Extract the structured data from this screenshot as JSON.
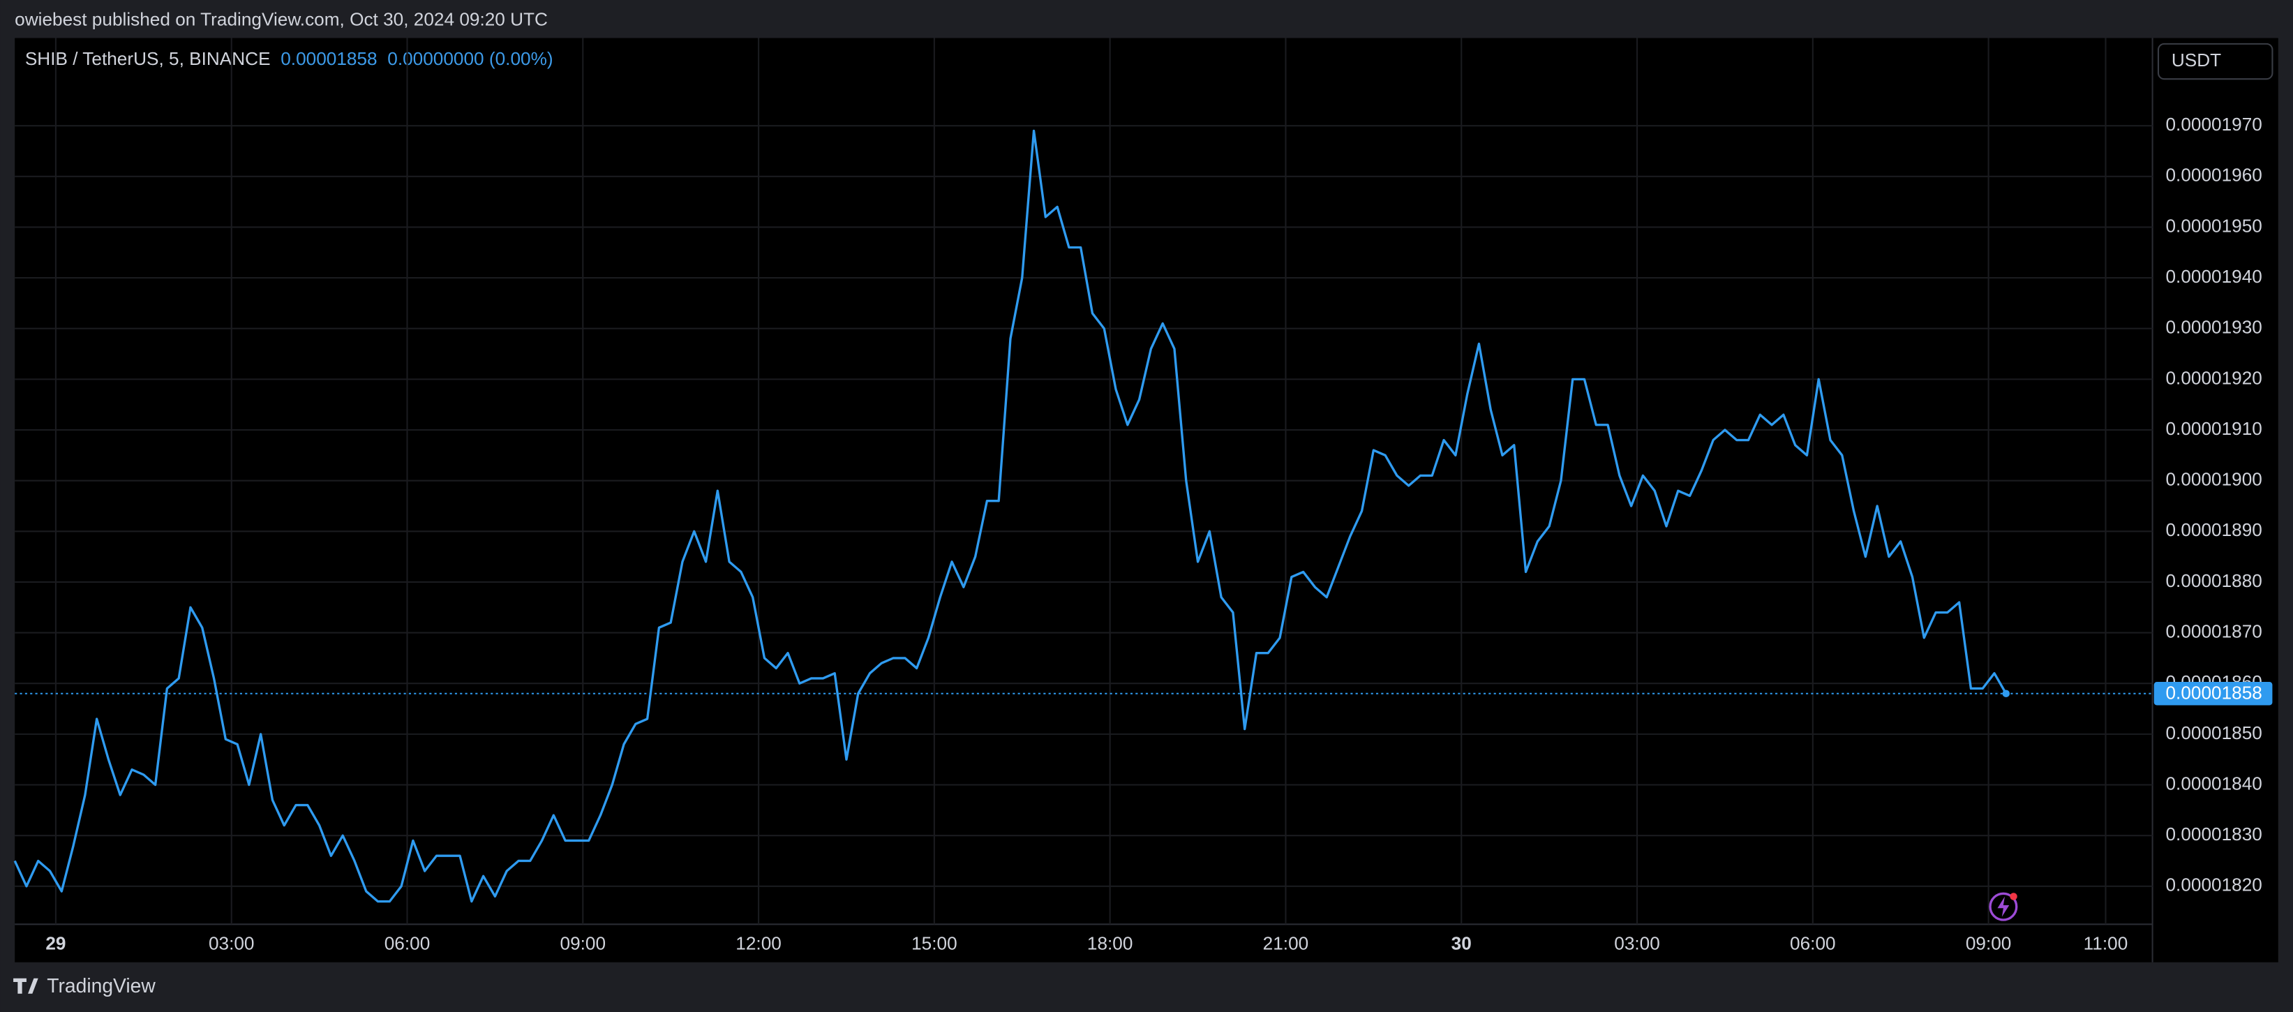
{
  "header": {
    "published": "owiebest published on TradingView.com, Oct 30, 2024 09:20 UTC"
  },
  "footer": {
    "brand": "TradingView"
  },
  "chart_data": {
    "type": "line",
    "symbol": "SHIB / TetherUS, 5, BINANCE",
    "legend_price": "0.00001858",
    "legend_change": "0.00000000 (0.00%)",
    "currency": "USDT",
    "last_price": {
      "value": 1.858e-05,
      "label": "0.00001858"
    },
    "grid": true,
    "xlim": [
      -0.7,
      35.8
    ],
    "xticks": [
      {
        "value": 0,
        "label": "29"
      },
      {
        "value": 3,
        "label": "03:00"
      },
      {
        "value": 6,
        "label": "06:00"
      },
      {
        "value": 9,
        "label": "09:00"
      },
      {
        "value": 12,
        "label": "12:00"
      },
      {
        "value": 15,
        "label": "15:00"
      },
      {
        "value": 18,
        "label": "18:00"
      },
      {
        "value": 21,
        "label": "21:00"
      },
      {
        "value": 24,
        "label": "30"
      },
      {
        "value": 27,
        "label": "03:00"
      },
      {
        "value": 30,
        "label": "06:00"
      },
      {
        "value": 33,
        "label": "09:00"
      },
      {
        "value": 35,
        "label": "11:00"
      }
    ],
    "ylim": [
      1.8125e-05,
      1.9873e-05
    ],
    "yticks": [
      {
        "value": 1.82e-05,
        "label": "0.00001820"
      },
      {
        "value": 1.83e-05,
        "label": "0.00001830"
      },
      {
        "value": 1.84e-05,
        "label": "0.00001840"
      },
      {
        "value": 1.85e-05,
        "label": "0.00001850"
      },
      {
        "value": 1.86e-05,
        "label": "0.00001860"
      },
      {
        "value": 1.87e-05,
        "label": "0.00001870"
      },
      {
        "value": 1.88e-05,
        "label": "0.00001880"
      },
      {
        "value": 1.89e-05,
        "label": "0.00001890"
      },
      {
        "value": 1.9e-05,
        "label": "0.00001900"
      },
      {
        "value": 1.91e-05,
        "label": "0.00001910"
      },
      {
        "value": 1.92e-05,
        "label": "0.00001920"
      },
      {
        "value": 1.93e-05,
        "label": "0.00001930"
      },
      {
        "value": 1.94e-05,
        "label": "0.00001940"
      },
      {
        "value": 1.95e-05,
        "label": "0.00001950"
      },
      {
        "value": 1.96e-05,
        "label": "0.00001960"
      },
      {
        "value": 1.97e-05,
        "label": "0.00001970"
      }
    ],
    "x": [
      -0.7,
      -0.5,
      -0.3,
      -0.1,
      0.1,
      0.3,
      0.5,
      0.7,
      0.9,
      1.1,
      1.3,
      1.5,
      1.7,
      1.9,
      2.1,
      2.3,
      2.5,
      2.7,
      2.9,
      3.1,
      3.3,
      3.5,
      3.7,
      3.9,
      4.1,
      4.3,
      4.5,
      4.7,
      4.9,
      5.1,
      5.3,
      5.5,
      5.7,
      5.9,
      6.1,
      6.3,
      6.5,
      6.7,
      6.9,
      7.1,
      7.3,
      7.5,
      7.7,
      7.9,
      8.1,
      8.3,
      8.5,
      8.7,
      8.9,
      9.1,
      9.3,
      9.5,
      9.7,
      9.9,
      10.1,
      10.3,
      10.5,
      10.7,
      10.9,
      11.1,
      11.3,
      11.5,
      11.7,
      11.9,
      12.1,
      12.3,
      12.5,
      12.7,
      12.9,
      13.1,
      13.3,
      13.5,
      13.7,
      13.9,
      14.1,
      14.3,
      14.5,
      14.7,
      14.9,
      15.1,
      15.3,
      15.5,
      15.7,
      15.9,
      16.1,
      16.3,
      16.5,
      16.7,
      16.9,
      17.1,
      17.3,
      17.5,
      17.7,
      17.9,
      18.1,
      18.3,
      18.5,
      18.7,
      18.9,
      19.1,
      19.3,
      19.5,
      19.7,
      19.9,
      20.1,
      20.3,
      20.5,
      20.7,
      20.9,
      21.1,
      21.3,
      21.5,
      21.7,
      21.9,
      22.1,
      22.3,
      22.5,
      22.7,
      22.9,
      23.1,
      23.3,
      23.5,
      23.7,
      23.9,
      24.1,
      24.3,
      24.5,
      24.7,
      24.9,
      25.1,
      25.3,
      25.5,
      25.7,
      25.9,
      26.1,
      26.3,
      26.5,
      26.7,
      26.9,
      27.1,
      27.3,
      27.5,
      27.7,
      27.9,
      28.1,
      28.3,
      28.5,
      28.7,
      28.9,
      29.1,
      29.3,
      29.5,
      29.7,
      29.9,
      30.1,
      30.3,
      30.5,
      30.7,
      30.9,
      31.1,
      31.3,
      31.5,
      31.7,
      31.9,
      32.1,
      32.3,
      32.5,
      32.7,
      32.9,
      33.1,
      33.3
    ],
    "series": [
      {
        "color": "#2f9bf0",
        "values": [
          1.825e-05,
          1.82e-05,
          1.825e-05,
          1.823e-05,
          1.819e-05,
          1.828e-05,
          1.838e-05,
          1.853e-05,
          1.845e-05,
          1.838e-05,
          1.843e-05,
          1.842e-05,
          1.84e-05,
          1.859e-05,
          1.861e-05,
          1.875e-05,
          1.871e-05,
          1.861e-05,
          1.849e-05,
          1.848e-05,
          1.84e-05,
          1.85e-05,
          1.837e-05,
          1.832e-05,
          1.836e-05,
          1.836e-05,
          1.832e-05,
          1.826e-05,
          1.83e-05,
          1.825e-05,
          1.819e-05,
          1.817e-05,
          1.817e-05,
          1.82e-05,
          1.829e-05,
          1.823e-05,
          1.826e-05,
          1.826e-05,
          1.826e-05,
          1.817e-05,
          1.822e-05,
          1.818e-05,
          1.823e-05,
          1.825e-05,
          1.825e-05,
          1.829e-05,
          1.834e-05,
          1.829e-05,
          1.829e-05,
          1.829e-05,
          1.834e-05,
          1.84e-05,
          1.848e-05,
          1.852e-05,
          1.853e-05,
          1.871e-05,
          1.872e-05,
          1.884e-05,
          1.89e-05,
          1.884e-05,
          1.898e-05,
          1.884e-05,
          1.882e-05,
          1.877e-05,
          1.865e-05,
          1.863e-05,
          1.866e-05,
          1.86e-05,
          1.861e-05,
          1.861e-05,
          1.862e-05,
          1.845e-05,
          1.858e-05,
          1.862e-05,
          1.864e-05,
          1.865e-05,
          1.865e-05,
          1.863e-05,
          1.869e-05,
          1.877e-05,
          1.884e-05,
          1.879e-05,
          1.885e-05,
          1.896e-05,
          1.896e-05,
          1.928e-05,
          1.94e-05,
          1.969e-05,
          1.952e-05,
          1.954e-05,
          1.946e-05,
          1.946e-05,
          1.933e-05,
          1.93e-05,
          1.918e-05,
          1.911e-05,
          1.916e-05,
          1.926e-05,
          1.931e-05,
          1.926e-05,
          1.9e-05,
          1.884e-05,
          1.89e-05,
          1.877e-05,
          1.874e-05,
          1.851e-05,
          1.866e-05,
          1.866e-05,
          1.869e-05,
          1.881e-05,
          1.882e-05,
          1.879e-05,
          1.877e-05,
          1.883e-05,
          1.889e-05,
          1.894e-05,
          1.906e-05,
          1.905e-05,
          1.901e-05,
          1.899e-05,
          1.901e-05,
          1.901e-05,
          1.908e-05,
          1.905e-05,
          1.917e-05,
          1.927e-05,
          1.914e-05,
          1.905e-05,
          1.907e-05,
          1.882e-05,
          1.888e-05,
          1.891e-05,
          1.9e-05,
          1.92e-05,
          1.92e-05,
          1.911e-05,
          1.911e-05,
          1.901e-05,
          1.895e-05,
          1.901e-05,
          1.898e-05,
          1.891e-05,
          1.898e-05,
          1.897e-05,
          1.902e-05,
          1.908e-05,
          1.91e-05,
          1.908e-05,
          1.908e-05,
          1.913e-05,
          1.911e-05,
          1.913e-05,
          1.907e-05,
          1.905e-05,
          1.92e-05,
          1.908e-05,
          1.905e-05,
          1.894e-05,
          1.885e-05,
          1.895e-05,
          1.885e-05,
          1.888e-05,
          1.881e-05,
          1.869e-05,
          1.874e-05,
          1.874e-05,
          1.876e-05,
          1.859e-05,
          1.859e-05,
          1.862e-05,
          1.858e-05
        ]
      }
    ]
  }
}
